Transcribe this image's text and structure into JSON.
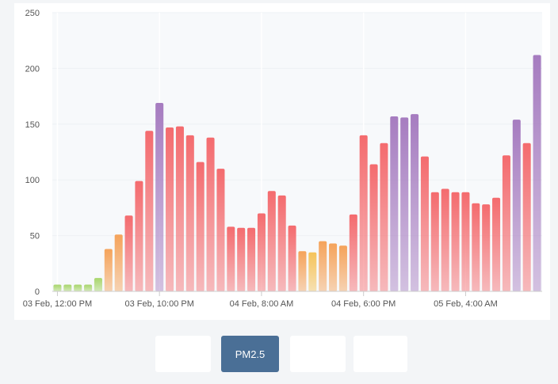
{
  "chart_data": {
    "type": "bar",
    "ylim": [
      0,
      250
    ],
    "yticks": [
      0,
      50,
      100,
      150,
      200,
      250
    ],
    "grid": true,
    "x_tick_labels": [
      "03 Feb, 12:00 PM",
      "03 Feb, 10:00 PM",
      "04 Feb, 8:00 AM",
      "04 Feb, 6:00 PM",
      "05 Feb, 4:00 AM"
    ],
    "x_tick_indices": [
      0,
      10,
      20,
      30,
      40
    ],
    "values": [
      6,
      6,
      6,
      6,
      12,
      38,
      51,
      68,
      99,
      144,
      169,
      147,
      148,
      140,
      116,
      138,
      110,
      58,
      57,
      57,
      70,
      90,
      86,
      59,
      36,
      35,
      45,
      43,
      41,
      69,
      140,
      114,
      133,
      157,
      156,
      159,
      121,
      89,
      92,
      89,
      89,
      79,
      78,
      84,
      122,
      154,
      133,
      212
    ],
    "colors": {
      "good": "#a8d66b",
      "moderate": "#f5c35a",
      "usg": "#f5a35a",
      "unhealthy": "#f46b6e",
      "very_unhealthy": "#a67cc0"
    }
  },
  "buttons": {
    "pm25_label": "PM2.5"
  }
}
